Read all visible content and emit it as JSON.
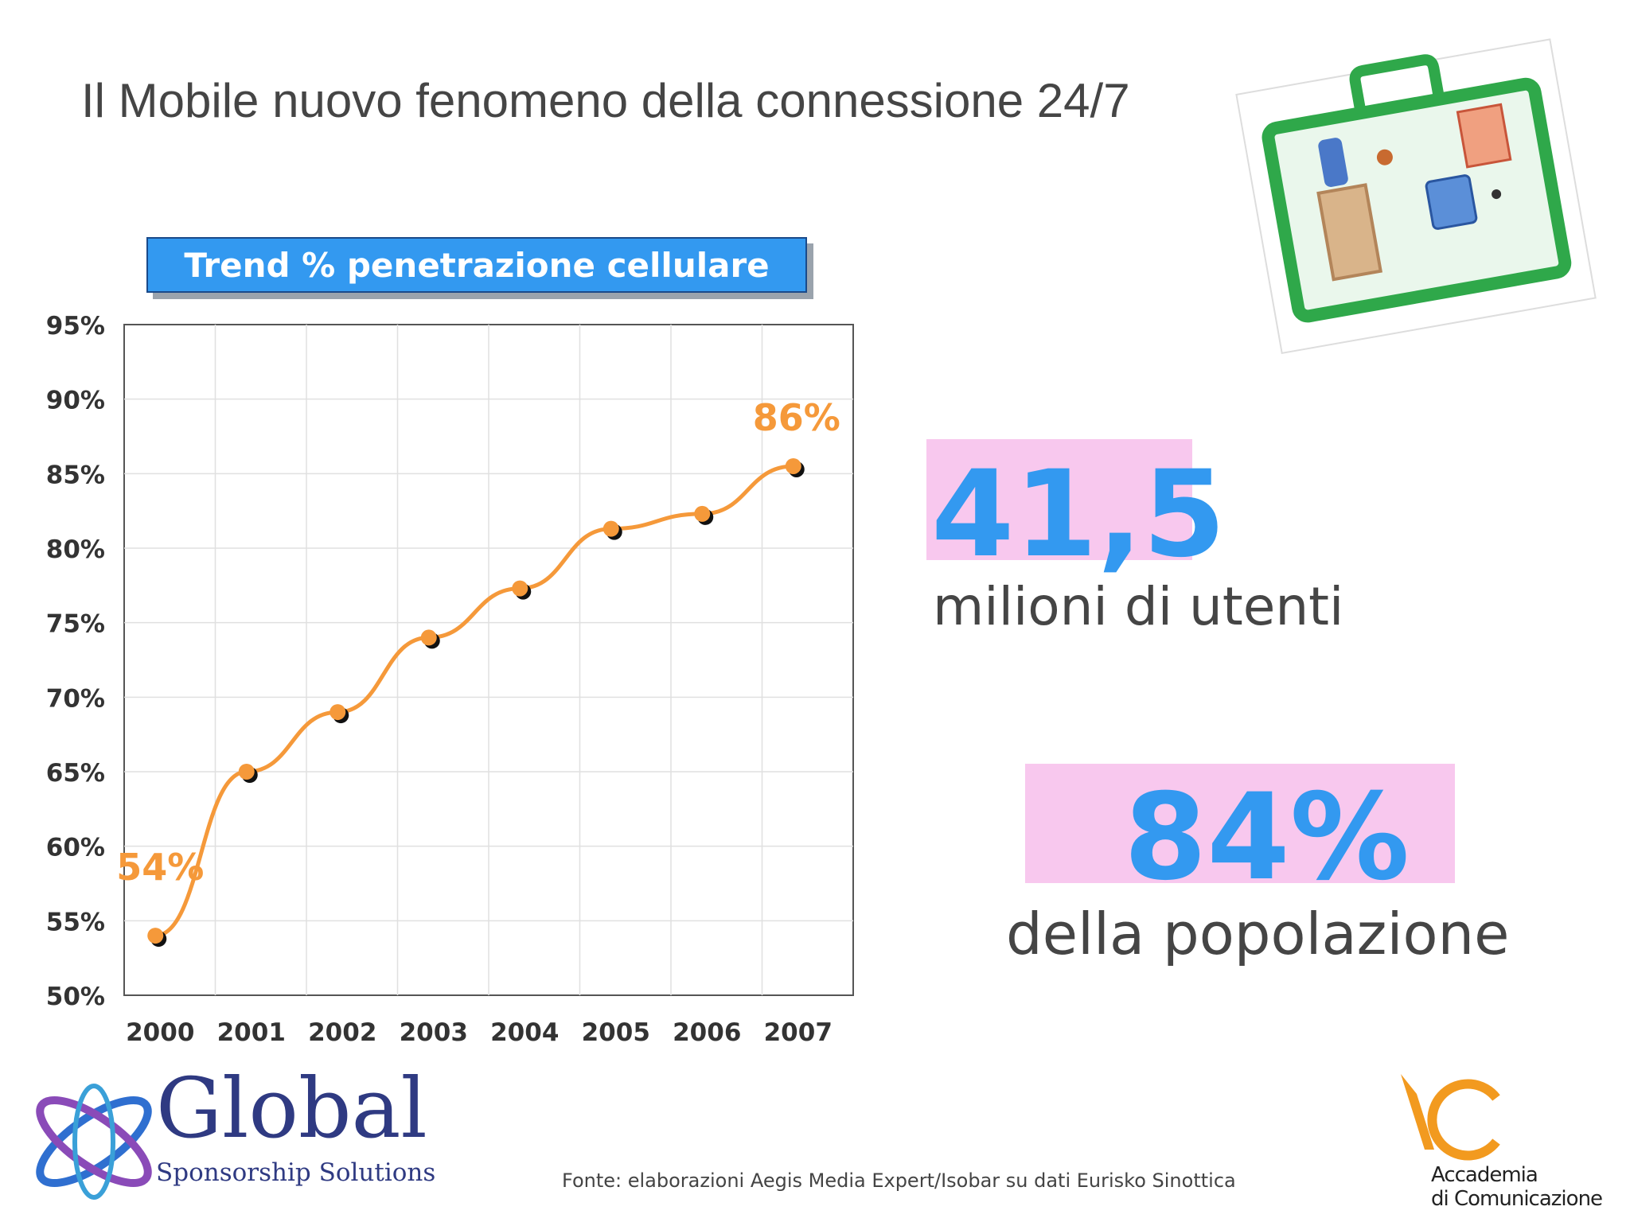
{
  "slide": {
    "title": "Il Mobile nuovo fenomeno della connessione 24/7",
    "source": "Fonte: elaborazioni Aegis Media Expert/Isobar su dati Eurisko Sinottica"
  },
  "stats": {
    "users_value": "41,5",
    "users_caption": "milioni di utenti",
    "population_value": "84%",
    "population_caption": "della popolazione"
  },
  "logos": {
    "global_word": "Global",
    "global_sub": "Sponsorship Solutions",
    "academy_line1": "Accademia",
    "academy_line2": "di Comunicazione"
  },
  "colors": {
    "accent_blue": "#3399f0",
    "line_orange": "#f5993a",
    "highlight_pink": "#f8c8ee"
  },
  "chart_data": {
    "type": "line",
    "title": "Trend % penetrazione cellulare",
    "categories": [
      "2000",
      "2001",
      "2002",
      "2003",
      "2004",
      "2005",
      "2006",
      "2007"
    ],
    "series": [
      {
        "values": [
          54,
          65,
          69,
          74,
          77.3,
          81.3,
          82.3,
          85.5
        ]
      }
    ],
    "y_ticks": [
      "50%",
      "55%",
      "60%",
      "65%",
      "70%",
      "75%",
      "80%",
      "85%",
      "90%",
      "95%"
    ],
    "ylim": [
      50,
      95
    ],
    "grid": true,
    "annotations": [
      {
        "category": "2000",
        "text": "54%"
      },
      {
        "category": "2007",
        "text": "86%"
      }
    ]
  }
}
